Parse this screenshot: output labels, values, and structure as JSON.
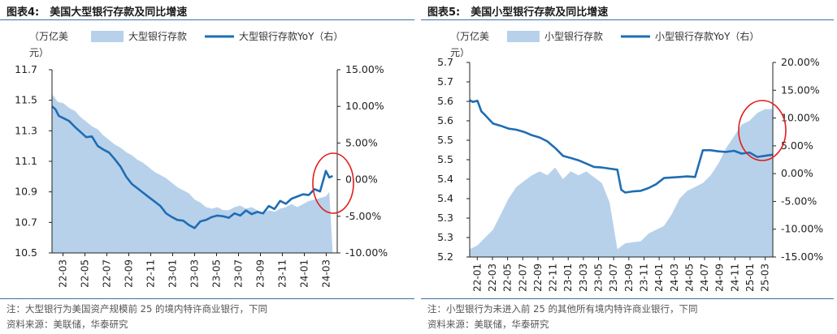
{
  "chart_data": [
    {
      "type": "area",
      "title": "图表4:　美国大型银行存款及同比增速",
      "ylabel": "（万亿美元）",
      "y2label": "",
      "ylim": [
        10.5,
        11.7
      ],
      "yticks": [
        "10.5",
        "10.7",
        "10.9",
        "11.1",
        "11.3",
        "11.5",
        "11.7"
      ],
      "y2lim": [
        -10,
        15
      ],
      "y2ticks": [
        "-10.00%",
        "-5.00%",
        "0.00%",
        "5.00%",
        "10.00%",
        "15.00%"
      ],
      "categories": [
        "22-03",
        "22-05",
        "22-07",
        "22-09",
        "22-11",
        "23-01",
        "23-03",
        "23-05",
        "23-07",
        "23-09",
        "23-11",
        "24-01",
        "24-03"
      ],
      "x_span": [
        0,
        25
      ],
      "series": [
        {
          "name": "大型银行存款",
          "kind": "area",
          "axis": "left",
          "color": "#b7d1ea",
          "x": [
            0,
            0.5,
            1,
            1.5,
            2,
            2.5,
            3,
            3.5,
            4,
            4.5,
            5,
            5.5,
            6,
            6.5,
            7,
            7.5,
            8,
            8.5,
            9,
            9.5,
            10,
            10.5,
            11,
            11.5,
            12,
            12.5,
            13,
            13.5,
            14,
            14.5,
            15,
            15.5,
            16,
            16.5,
            17,
            17.5,
            18,
            18.5,
            19,
            19.5,
            20,
            20.5,
            21,
            21.5,
            22,
            22.5,
            23,
            23.5,
            24,
            24.3,
            24.6
          ],
          "values": [
            11.54,
            11.49,
            11.48,
            11.45,
            11.43,
            11.39,
            11.36,
            11.33,
            11.31,
            11.27,
            11.24,
            11.21,
            11.19,
            11.16,
            11.14,
            11.11,
            11.09,
            11.06,
            11.03,
            11.01,
            10.99,
            10.96,
            10.93,
            10.91,
            10.89,
            10.85,
            10.83,
            10.8,
            10.79,
            10.8,
            10.78,
            10.78,
            10.8,
            10.81,
            10.79,
            10.8,
            10.78,
            10.76,
            10.78,
            10.77,
            10.79,
            10.8,
            10.82,
            10.8,
            10.82,
            10.84,
            10.85,
            10.86,
            10.87,
            10.9,
            10.5
          ]
        },
        {
          "name": "大型银行存款YoY（右）",
          "kind": "line",
          "axis": "right",
          "color": "#1f6db4",
          "x": [
            0,
            0.3,
            0.6,
            1,
            1.5,
            2,
            2.5,
            3,
            3.5,
            4,
            4.5,
            5,
            5.5,
            6,
            6.5,
            7,
            7.5,
            8,
            8.5,
            9,
            9.5,
            10,
            10.5,
            11,
            11.5,
            12,
            12.5,
            13,
            13.5,
            14,
            14.5,
            15,
            15.5,
            16,
            16.5,
            17,
            17.5,
            18,
            18.5,
            19,
            19.5,
            20,
            20.5,
            21,
            21.5,
            22,
            22.5,
            23,
            23.5,
            24,
            24.3,
            24.6
          ],
          "values": [
            10.0,
            9.6,
            8.7,
            8.4,
            8.0,
            7.2,
            6.5,
            5.8,
            5.9,
            4.6,
            4.1,
            3.7,
            2.8,
            1.8,
            0.4,
            -0.6,
            -1.2,
            -1.8,
            -2.4,
            -3.0,
            -3.6,
            -4.6,
            -5.1,
            -5.5,
            -5.6,
            -6.2,
            -6.6,
            -5.7,
            -5.5,
            -5.1,
            -4.9,
            -5.0,
            -5.2,
            -4.6,
            -4.9,
            -4.2,
            -4.7,
            -4.4,
            -4.6,
            -3.6,
            -4.0,
            -2.9,
            -3.3,
            -2.6,
            -2.3,
            -2.0,
            -2.1,
            -1.3,
            -1.6,
            1.2,
            0.3,
            0.5
          ]
        }
      ],
      "annotation": "red-ellipse"
    },
    {
      "type": "area",
      "title": "图表5:　美国小型银行存款及同比增速",
      "ylabel": "（万亿美元）",
      "y2label": "",
      "ylim": [
        5.2,
        5.7
      ],
      "yticks": [
        "5.2",
        "5.3",
        "5.3",
        "5.4",
        "5.4",
        "5.5",
        "5.5",
        "5.6",
        "5.6",
        "5.7",
        "5.7"
      ],
      "y2lim": [
        -15,
        20
      ],
      "y2ticks": [
        "-15.00%",
        "-10.00%",
        "-5.00%",
        "0.00%",
        "5.00%",
        "10.00%",
        "15.00%",
        "20.00%"
      ],
      "categories": [
        "22-01",
        "22-03",
        "22-05",
        "22-07",
        "22-09",
        "22-11",
        "23-01",
        "23-03",
        "23-05",
        "23-07",
        "23-09",
        "23-11",
        "24-01",
        "24-03",
        "24-05",
        "24-07",
        "24-09",
        "24-11",
        "25-01",
        "25-03"
      ],
      "x_span": [
        0,
        39
      ],
      "series": [
        {
          "name": "小型银行存款",
          "kind": "area",
          "axis": "left",
          "color": "#b7d1ea",
          "x": [
            0,
            1,
            2,
            3,
            4,
            5,
            6,
            7,
            8,
            9,
            10,
            11,
            12,
            13,
            14,
            15,
            16,
            17,
            18,
            19,
            20,
            21,
            22,
            23,
            24,
            25,
            26,
            27,
            28,
            29,
            30,
            31,
            32,
            33,
            34,
            35,
            36,
            37,
            38,
            39
          ],
          "values": [
            5.22,
            5.23,
            5.25,
            5.27,
            5.31,
            5.35,
            5.38,
            5.395,
            5.41,
            5.42,
            5.41,
            5.43,
            5.4,
            5.42,
            5.41,
            5.42,
            5.405,
            5.39,
            5.34,
            5.22,
            5.235,
            5.238,
            5.24,
            5.26,
            5.27,
            5.28,
            5.31,
            5.35,
            5.37,
            5.38,
            5.39,
            5.41,
            5.44,
            5.48,
            5.51,
            5.54,
            5.55,
            5.57,
            5.58,
            5.58
          ]
        },
        {
          "name": "小型银行存款YoY（右）",
          "kind": "line",
          "axis": "right",
          "color": "#1f6db4",
          "x": [
            0,
            0.4,
            1,
            1.5,
            2,
            3,
            4,
            5,
            6,
            7,
            8,
            9,
            10,
            11,
            12,
            13,
            14,
            15,
            16,
            17,
            18,
            19,
            19.5,
            20,
            21,
            22,
            23,
            24,
            25,
            26,
            27,
            28,
            29,
            30,
            31,
            32,
            33,
            34,
            35,
            36,
            37,
            38,
            39
          ],
          "values": [
            13.2,
            12.9,
            13.1,
            11.2,
            10.5,
            9.0,
            8.6,
            8.1,
            7.9,
            7.5,
            6.9,
            6.5,
            5.8,
            4.6,
            3.2,
            2.8,
            2.4,
            1.8,
            1.2,
            1.1,
            0.9,
            0.7,
            -2.9,
            -3.4,
            -3.2,
            -3.1,
            -2.6,
            -1.9,
            -0.8,
            -0.7,
            -0.6,
            -0.5,
            -0.6,
            4.2,
            4.2,
            4.0,
            3.9,
            4.1,
            3.6,
            3.8,
            3.0,
            3.2,
            3.4
          ]
        }
      ],
      "annotation": "red-ellipse"
    }
  ],
  "notes": [
    {
      "note": "注：大型银行为美国资产规模前 25 的境内特许商业银行，下同",
      "source": "资料来源：美联储，华泰研究"
    },
    {
      "note": "注：小型银行为未进入前 25 的其他所有境内特许商业银行，下同",
      "source": "资料来源：美联储，华泰研究"
    }
  ]
}
